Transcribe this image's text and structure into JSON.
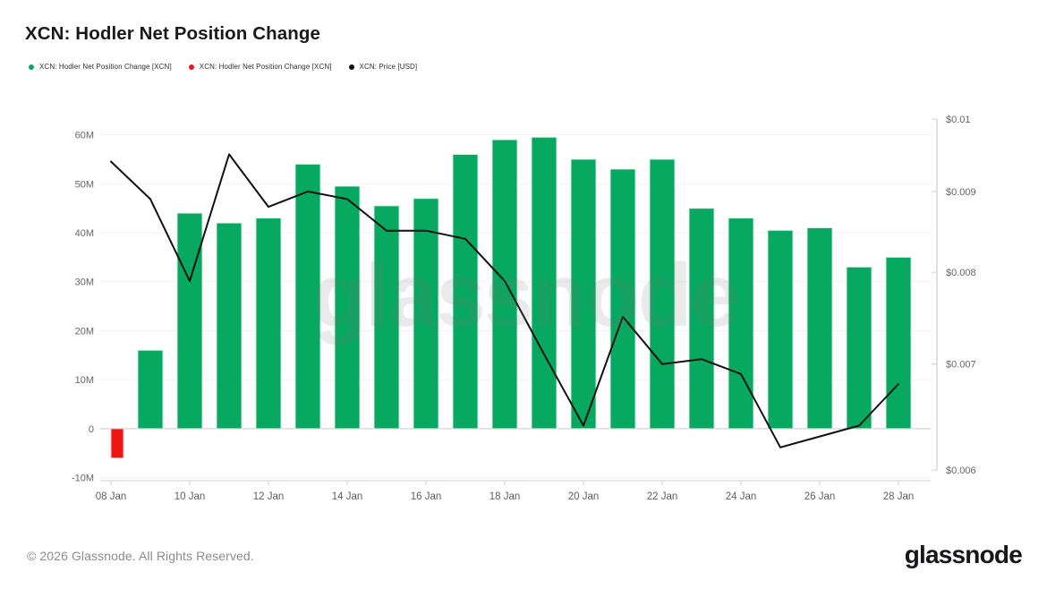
{
  "title": "XCN: Hodler Net Position Change",
  "legend": [
    {
      "label": "XCN: Hodler Net Position Change [XCN]",
      "color": "#07a860",
      "series": "hodler-net-position-positive"
    },
    {
      "label": "XCN: Hodler Net Position Change [XCN]",
      "color": "#ee1515",
      "series": "hodler-net-position-negative"
    },
    {
      "label": "XCN: Price [USD]",
      "color": "#111111",
      "series": "price"
    }
  ],
  "watermark": "glassnode",
  "footer": {
    "copyright": "© 2026 Glassnode. All Rights Reserved.",
    "logo": "glassnode"
  },
  "chart_data": {
    "type": "bar",
    "title": "XCN: Hodler Net Position Change",
    "grid": true,
    "legend_position": "top-left",
    "categories": [
      "08 Jan",
      "09 Jan",
      "10 Jan",
      "11 Jan",
      "12 Jan",
      "13 Jan",
      "14 Jan",
      "15 Jan",
      "16 Jan",
      "17 Jan",
      "18 Jan",
      "19 Jan",
      "20 Jan",
      "21 Jan",
      "22 Jan",
      "23 Jan",
      "24 Jan",
      "25 Jan",
      "26 Jan",
      "27 Jan",
      "28 Jan"
    ],
    "x_tick_labels": [
      "08 Jan",
      "10 Jan",
      "12 Jan",
      "14 Jan",
      "16 Jan",
      "18 Jan",
      "20 Jan",
      "22 Jan",
      "24 Jan",
      "26 Jan",
      "28 Jan"
    ],
    "series": [
      {
        "name": "XCN: Hodler Net Position Change [XCN]",
        "type": "bar",
        "axis": "left",
        "unit": "XCN (millions)",
        "color_positive": "#07a860",
        "color_negative": "#ee1515",
        "values": [
          -6,
          16,
          44,
          42,
          43,
          54,
          49.5,
          45.5,
          47,
          56,
          59,
          59.5,
          55,
          53,
          55,
          45,
          43,
          40.5,
          41,
          33,
          35
        ]
      },
      {
        "name": "XCN: Price [USD]",
        "type": "line",
        "axis": "right",
        "unit": "USD",
        "color": "#111111",
        "values": [
          0.0094,
          0.0089,
          0.0079,
          0.0095,
          0.0088,
          0.009,
          0.0089,
          0.0085,
          0.0085,
          0.0084,
          0.0079,
          0.0071,
          0.0064,
          0.0075,
          0.007,
          0.00705,
          0.0069,
          0.0062,
          0.0063,
          0.0064,
          0.0068
        ]
      }
    ],
    "left_axis": {
      "ticks": [
        -10,
        0,
        10,
        20,
        30,
        40,
        50,
        60
      ],
      "tick_labels": [
        "-10M",
        "0",
        "10M",
        "20M",
        "30M",
        "40M",
        "50M",
        "60M"
      ],
      "range": [
        -10,
        60
      ],
      "scale": "linear"
    },
    "right_axis": {
      "ticks": [
        0.006,
        0.007,
        0.008,
        0.009,
        0.01
      ],
      "tick_labels": [
        "$0.006",
        "$0.007",
        "$0.008",
        "$0.009",
        "$0.01"
      ],
      "range": [
        0.006,
        0.01
      ],
      "scale": "log"
    }
  }
}
